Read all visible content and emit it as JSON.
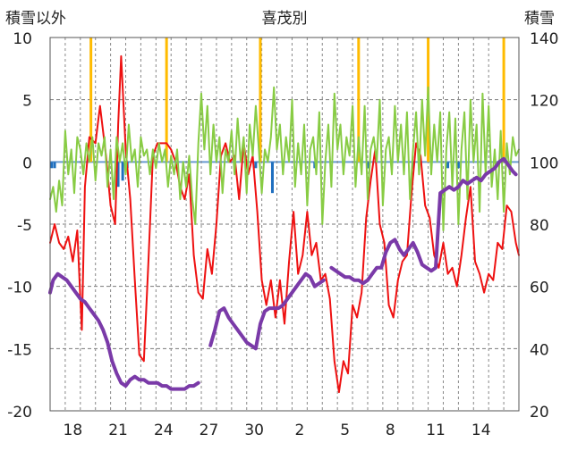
{
  "chart_data": {
    "type": "line",
    "title": "喜茂別",
    "ylabel_left": "積雪以外",
    "ylabel_right": "積雪",
    "ylim_left": [
      -20,
      10
    ],
    "ylim_right": [
      20,
      140
    ],
    "yticks_left": [
      "10",
      "5",
      "0",
      "-5",
      "-10",
      "-15",
      "-20"
    ],
    "yticks_right": [
      "140",
      "120",
      "100",
      "80",
      "60",
      "40",
      "20"
    ],
    "xlim_days": [
      0,
      31
    ],
    "xticks": [
      {
        "label": "18",
        "day": 1.5
      },
      {
        "label": "21",
        "day": 4.5
      },
      {
        "label": "24",
        "day": 7.5
      },
      {
        "label": "27",
        "day": 10.5
      },
      {
        "label": "30",
        "day": 13.5
      },
      {
        "label": "2",
        "day": 16.5
      },
      {
        "label": "5",
        "day": 19.5
      },
      {
        "label": "8",
        "day": 22.5
      },
      {
        "label": "11",
        "day": 25.5
      },
      {
        "label": "14",
        "day": 28.5
      }
    ],
    "series": [
      {
        "role": "temperature",
        "color": "#ee1111",
        "axis": "left",
        "x": [
          0.0,
          0.3,
          0.6,
          0.9,
          1.2,
          1.5,
          1.8,
          2.0,
          2.1,
          2.3,
          2.6,
          3.0,
          3.3,
          3.7,
          4.0,
          4.3,
          4.5,
          4.7,
          5.0,
          5.3,
          5.6,
          5.9,
          6.2,
          6.5,
          6.8,
          7.1,
          7.4,
          7.7,
          8.0,
          8.3,
          8.6,
          8.9,
          9.2,
          9.5,
          9.8,
          10.1,
          10.4,
          10.7,
          11.0,
          11.3,
          11.6,
          11.9,
          12.2,
          12.5,
          12.8,
          13.1,
          13.4,
          13.7,
          14.0,
          14.3,
          14.6,
          14.9,
          15.2,
          15.5,
          15.8,
          16.1,
          16.4,
          16.7,
          17.0,
          17.3,
          17.6,
          17.9,
          18.2,
          18.5,
          18.8,
          19.1,
          19.4,
          19.7,
          20.0,
          20.3,
          20.6,
          20.9,
          21.2,
          21.5,
          21.8,
          22.1,
          22.4,
          22.7,
          23.0,
          23.3,
          23.6,
          23.9,
          24.2,
          24.5,
          24.8,
          25.1,
          25.4,
          25.7,
          26.0,
          26.3,
          26.6,
          26.9,
          27.2,
          27.5,
          27.8,
          28.1,
          28.4,
          28.7,
          29.0,
          29.3,
          29.6,
          29.9,
          30.2,
          30.5,
          30.8,
          31.0
        ],
        "y": [
          -6.5,
          -5.0,
          -6.5,
          -7.0,
          -6.0,
          -8.0,
          -5.5,
          -11.0,
          -13.5,
          -2.0,
          2.0,
          1.5,
          4.5,
          0.5,
          -3.5,
          -5.0,
          3.0,
          8.5,
          1.0,
          -3.0,
          -9.5,
          -15.5,
          -16.0,
          -8.0,
          0.5,
          1.5,
          1.5,
          1.5,
          1.0,
          0.0,
          -2.0,
          -3.0,
          -1.0,
          -7.5,
          -10.5,
          -11.0,
          -7.0,
          -9.0,
          -5.0,
          0.5,
          1.5,
          0.0,
          0.5,
          -3.0,
          1.5,
          -1.0,
          0.5,
          -4.0,
          -9.5,
          -11.5,
          -9.5,
          -12.5,
          -9.5,
          -13.0,
          -8.0,
          -4.0,
          -9.0,
          -7.5,
          -4.0,
          -7.5,
          -6.5,
          -9.5,
          -9.0,
          -11.0,
          -16.0,
          -18.5,
          -16.0,
          -17.0,
          -11.5,
          -12.5,
          -10.5,
          -4.5,
          -1.5,
          1.0,
          -5.0,
          -6.5,
          -11.5,
          -12.5,
          -9.5,
          -8.0,
          -7.5,
          -2.5,
          1.5,
          0.5,
          -3.5,
          -4.5,
          -7.5,
          -8.5,
          -6.5,
          -9.0,
          -8.5,
          -10.0,
          -7.5,
          -4.5,
          -2.0,
          -8.0,
          -9.0,
          -10.5,
          -9.0,
          -9.5,
          -6.5,
          -7.0,
          -3.5,
          -4.0,
          -6.5,
          -7.5
        ]
      },
      {
        "role": "wind",
        "color": "#88cc44",
        "axis": "left",
        "x": [
          0.0,
          0.2,
          0.4,
          0.6,
          0.8,
          1.0,
          1.2,
          1.4,
          1.6,
          1.8,
          2.0,
          2.2,
          2.4,
          2.6,
          2.8,
          3.0,
          3.2,
          3.4,
          3.6,
          3.8,
          4.0,
          4.2,
          4.4,
          4.6,
          4.8,
          5.0,
          5.2,
          5.4,
          5.6,
          5.8,
          6.0,
          6.2,
          6.4,
          6.6,
          6.8,
          7.0,
          7.2,
          7.4,
          7.6,
          7.8,
          8.0,
          8.2,
          8.4,
          8.6,
          8.8,
          9.0,
          9.2,
          9.4,
          9.6,
          9.8,
          10.0,
          10.2,
          10.4,
          10.6,
          10.8,
          11.0,
          11.2,
          11.4,
          11.6,
          11.8,
          12.0,
          12.2,
          12.4,
          12.6,
          12.8,
          13.0,
          13.2,
          13.4,
          13.6,
          13.8,
          14.0,
          14.2,
          14.4,
          14.6,
          14.8,
          15.0,
          15.2,
          15.4,
          15.6,
          15.8,
          16.0,
          16.2,
          16.4,
          16.6,
          16.8,
          17.0,
          17.2,
          17.4,
          17.6,
          17.8,
          18.0,
          18.2,
          18.4,
          18.6,
          18.8,
          19.0,
          19.2,
          19.4,
          19.6,
          19.8,
          20.0,
          20.2,
          20.4,
          20.6,
          20.8,
          21.0,
          21.2,
          21.4,
          21.6,
          21.8,
          22.0,
          22.2,
          22.4,
          22.6,
          22.8,
          23.0,
          23.2,
          23.4,
          23.6,
          23.8,
          24.0,
          24.2,
          24.4,
          24.6,
          24.8,
          25.0,
          25.2,
          25.4,
          25.6,
          25.8,
          26.0,
          26.2,
          26.4,
          26.6,
          26.8,
          27.0,
          27.2,
          27.4,
          27.6,
          27.8,
          28.0,
          28.2,
          28.4,
          28.6,
          28.8,
          29.0,
          29.2,
          29.4,
          29.6,
          29.8,
          30.0,
          30.2,
          30.4,
          30.6,
          30.8,
          31.0
        ],
        "y": [
          -3.0,
          -2.0,
          -4.0,
          -1.5,
          -3.5,
          2.5,
          -1.0,
          1.0,
          -2.5,
          2.0,
          1.0,
          -1.0,
          1.5,
          0.0,
          2.0,
          -1.5,
          1.5,
          0.5,
          2.0,
          -2.0,
          1.0,
          -3.0,
          2.0,
          0.0,
          1.5,
          -1.0,
          3.0,
          0.0,
          1.0,
          -2.0,
          2.0,
          0.5,
          1.0,
          -1.0,
          1.0,
          -0.5,
          1.5,
          0.0,
          1.0,
          -2.0,
          0.5,
          -1.0,
          1.0,
          -3.0,
          0.0,
          -2.0,
          0.5,
          -3.0,
          -5.0,
          1.5,
          5.5,
          1.0,
          4.5,
          -1.0,
          3.0,
          0.0,
          2.0,
          -2.5,
          1.0,
          0.0,
          2.5,
          -1.0,
          3.5,
          0.0,
          2.0,
          -2.5,
          3.0,
          0.5,
          4.5,
          1.0,
          -2.5,
          1.0,
          0.0,
          2.0,
          6.0,
          1.0,
          3.0,
          -1.0,
          2.0,
          0.0,
          5.0,
          -2.0,
          1.5,
          -1.0,
          3.0,
          -3.5,
          1.0,
          2.0,
          -1.0,
          4.0,
          -5.0,
          0.0,
          3.0,
          -2.0,
          5.5,
          1.0,
          3.0,
          -1.0,
          2.0,
          0.5,
          4.5,
          -2.0,
          2.0,
          -1.0,
          4.5,
          -3.0,
          1.0,
          2.0,
          0.0,
          5.0,
          -3.5,
          1.0,
          2.0,
          -1.0,
          4.5,
          0.0,
          3.0,
          -1.0,
          4.0,
          -3.0,
          1.0,
          4.0,
          -1.0,
          5.0,
          0.5,
          6.0,
          -1.0,
          3.0,
          0.0,
          4.0,
          -5.5,
          1.0,
          4.0,
          -2.0,
          3.5,
          -5.0,
          1.0,
          4.0,
          -3.0,
          5.0,
          0.0,
          3.0,
          -4.0,
          5.5,
          -1.0,
          4.5,
          -2.0,
          1.0,
          -3.0,
          2.5,
          -4.0,
          1.5,
          -1.0,
          2.0,
          0.5,
          1.0
        ]
      },
      {
        "role": "snow_depth",
        "color": "#7a3aa8",
        "axis": "right",
        "x": [
          0.0,
          0.2,
          0.5,
          0.8,
          1.1,
          1.4,
          1.7,
          2.0,
          2.3,
          2.6,
          2.9,
          3.2,
          3.5,
          3.8,
          4.1,
          4.4,
          4.7,
          5.0,
          5.3,
          5.6,
          5.9,
          6.2,
          6.5,
          6.8,
          7.1,
          7.4,
          7.7,
          8.0,
          8.3,
          8.6,
          8.9,
          9.2,
          9.5,
          9.8,
          null,
          10.3,
          10.6,
          10.9,
          11.2,
          11.5,
          11.8,
          12.1,
          12.4,
          12.7,
          13.0,
          13.3,
          13.6,
          13.9,
          14.2,
          14.5,
          14.8,
          15.1,
          15.4,
          15.7,
          16.0,
          16.3,
          16.6,
          16.9,
          17.2,
          17.5,
          17.8,
          18.1,
          null,
          18.6,
          18.9,
          19.2,
          19.5,
          19.8,
          20.1,
          20.4,
          20.7,
          21.0,
          21.3,
          21.6,
          21.9,
          22.2,
          22.5,
          22.8,
          23.1,
          23.4,
          23.7,
          24.0,
          24.3,
          24.6,
          24.9,
          25.2,
          25.5,
          25.8,
          26.1,
          26.4,
          26.7,
          27.0,
          27.3,
          27.6,
          27.9,
          28.2,
          28.5,
          28.8,
          29.1,
          29.4,
          29.7,
          30.0,
          30.3,
          30.6,
          30.8
        ],
        "y": [
          58,
          62,
          64,
          63,
          62,
          60,
          58,
          56,
          55,
          53,
          51,
          49,
          46,
          42,
          36,
          32,
          29,
          28,
          30,
          31,
          30,
          30,
          29,
          29,
          29,
          28,
          28,
          27,
          27,
          27,
          27,
          28,
          28,
          29,
          31,
          null,
          41,
          46,
          52,
          53,
          50,
          48,
          46,
          44,
          42,
          41,
          40,
          48,
          52,
          53,
          53,
          53,
          54,
          56,
          58,
          60,
          62,
          64,
          63,
          60,
          61,
          62,
          null,
          66,
          65,
          64,
          63,
          63,
          62,
          62,
          61,
          62,
          64,
          66,
          66,
          71,
          74,
          75,
          72,
          70,
          72,
          74,
          71,
          67,
          66,
          65,
          66,
          90,
          91,
          92,
          91,
          92,
          94,
          93,
          94,
          95,
          94,
          96,
          97,
          98,
          100,
          101,
          99,
          97,
          96
        ]
      },
      {
        "role": "precipitation",
        "color": "#ffbb00",
        "axis": "left",
        "type": "bar",
        "x": [
          2.7,
          7.7,
          13.9,
          20.4,
          25.0,
          30.0
        ],
        "y": [
          10,
          10,
          10,
          10,
          10,
          10
        ]
      },
      {
        "role": "snowfall",
        "color": "#1f6fbf",
        "axis": "left",
        "type": "bar",
        "x": [
          0.1,
          0.3,
          4.5,
          4.8,
          5.1,
          13.6,
          14.7,
          17.5,
          21.0,
          24.0,
          26.3,
          27.0
        ],
        "y": [
          -0.5,
          -0.5,
          -2.0,
          -1.5,
          -0.5,
          -0.5,
          -2.5,
          -0.5,
          -0.5,
          -0.5,
          -0.5,
          -0.5
        ]
      }
    ]
  }
}
